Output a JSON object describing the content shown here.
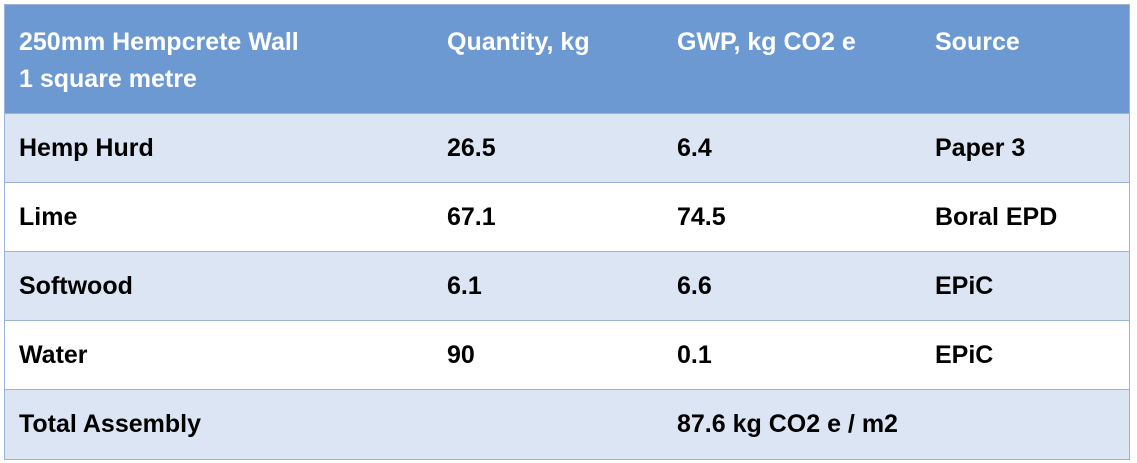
{
  "table": {
    "headers": [
      "250mm Hempcrete Wall 1 square metre",
      "Quantity, kg",
      "GWP, kg CO2 e",
      "Source"
    ],
    "header_line1": "250mm Hempcrete Wall",
    "header_line2": "1 square metre",
    "rows": [
      [
        "Hemp Hurd",
        "26.5",
        "6.4",
        "Paper 3"
      ],
      [
        "Lime",
        "67.1",
        "74.5",
        "Boral EPD"
      ],
      [
        "Softwood",
        "6.1",
        "6.6",
        "EPiC"
      ],
      [
        "Water",
        "90",
        "0.1",
        "EPiC"
      ]
    ],
    "total": {
      "label": "Total Assembly",
      "value": "87.6 kg CO2 e / m2"
    }
  },
  "colors": {
    "header_bg": "#6d99d3",
    "alt_row_bg": "#dbe5f3",
    "border": "#9bb3d8"
  }
}
